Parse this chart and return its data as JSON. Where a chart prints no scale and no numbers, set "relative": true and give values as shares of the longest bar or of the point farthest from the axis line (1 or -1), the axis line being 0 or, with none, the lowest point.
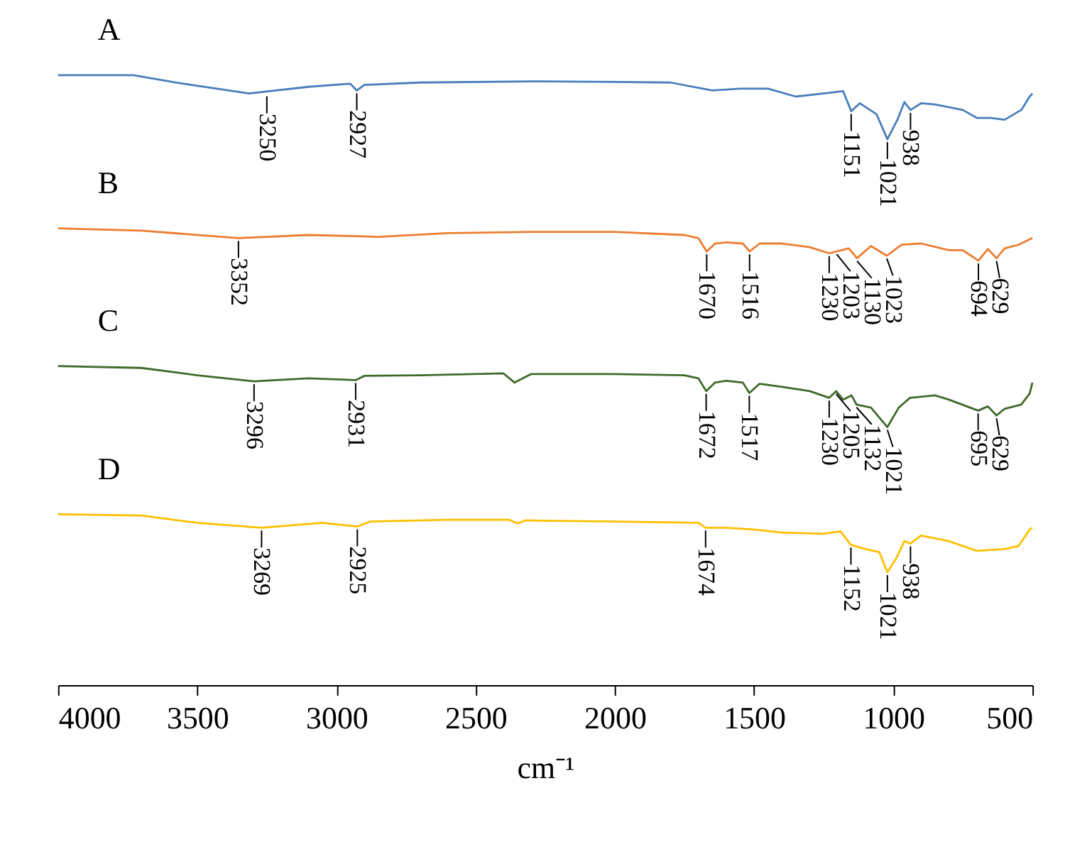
{
  "chart_data": {
    "type": "line",
    "relative": true,
    "xlabel": "cm⁻¹",
    "xlim": [
      4000,
      500
    ],
    "xticks": [
      4000,
      3500,
      3000,
      2500,
      2000,
      1500,
      1000,
      500
    ],
    "grid": false,
    "series": [
      {
        "name": "A",
        "color": "#4a7ebb",
        "x": [
          4000,
          3730,
          3550,
          3314,
          3100,
          2950,
          2927,
          2900,
          2700,
          2300,
          2000,
          1800,
          1650,
          1550,
          1450,
          1350,
          1250,
          1180,
          1151,
          1120,
          1060,
          1021,
          985,
          960,
          938,
          900,
          850,
          750,
          700,
          650,
          600,
          540,
          510,
          500
        ],
        "values": [
          1.0,
          1.0,
          0.986,
          0.97,
          0.981,
          0.986,
          0.975,
          0.984,
          0.988,
          0.99,
          0.989,
          0.988,
          0.975,
          0.978,
          0.978,
          0.965,
          0.97,
          0.974,
          0.941,
          0.954,
          0.936,
          0.895,
          0.927,
          0.956,
          0.943,
          0.954,
          0.952,
          0.943,
          0.93,
          0.93,
          0.927,
          0.943,
          0.965,
          0.97
        ]
      },
      {
        "name": "B",
        "color": "#ed7d31",
        "x": [
          4000,
          3700,
          3352,
          3100,
          2850,
          2600,
          2300,
          2000,
          1750,
          1700,
          1670,
          1640,
          1600,
          1540,
          1516,
          1480,
          1400,
          1300,
          1230,
          1203,
          1160,
          1130,
          1080,
          1023,
          970,
          900,
          800,
          750,
          694,
          660,
          629,
          600,
          550,
          500
        ],
        "values": [
          0.749,
          0.745,
          0.733,
          0.738,
          0.735,
          0.741,
          0.743,
          0.743,
          0.738,
          0.733,
          0.711,
          0.724,
          0.726,
          0.724,
          0.711,
          0.724,
          0.724,
          0.718,
          0.708,
          0.711,
          0.716,
          0.7,
          0.72,
          0.704,
          0.722,
          0.724,
          0.713,
          0.713,
          0.696,
          0.715,
          0.7,
          0.716,
          0.722,
          0.733
        ]
      },
      {
        "name": "C",
        "color": "#3f6a2a",
        "x": [
          4000,
          3700,
          3500,
          3296,
          3100,
          2931,
          2900,
          2700,
          2400,
          2360,
          2330,
          2300,
          2000,
          1750,
          1700,
          1672,
          1640,
          1600,
          1540,
          1517,
          1480,
          1400,
          1300,
          1230,
          1205,
          1180,
          1150,
          1132,
          1080,
          1021,
          980,
          940,
          850,
          800,
          695,
          660,
          629,
          600,
          540,
          510,
          500
        ],
        "values": [
          0.523,
          0.52,
          0.508,
          0.498,
          0.503,
          0.5,
          0.507,
          0.508,
          0.511,
          0.496,
          0.503,
          0.51,
          0.51,
          0.508,
          0.503,
          0.482,
          0.496,
          0.499,
          0.496,
          0.479,
          0.494,
          0.489,
          0.482,
          0.471,
          0.482,
          0.468,
          0.475,
          0.46,
          0.455,
          0.423,
          0.455,
          0.471,
          0.475,
          0.468,
          0.45,
          0.457,
          0.442,
          0.453,
          0.46,
          0.478,
          0.496
        ]
      },
      {
        "name": "D",
        "color": "#ffc000",
        "x": [
          4000,
          3700,
          3500,
          3269,
          3050,
          2925,
          2880,
          2600,
          2380,
          2350,
          2320,
          2000,
          1700,
          1674,
          1600,
          1500,
          1400,
          1250,
          1190,
          1152,
          1100,
          1050,
          1021,
          990,
          960,
          938,
          900,
          800,
          700,
          600,
          550,
          510,
          500
        ],
        "values": [
          0.28,
          0.278,
          0.266,
          0.258,
          0.266,
          0.26,
          0.268,
          0.271,
          0.271,
          0.265,
          0.27,
          0.268,
          0.266,
          0.258,
          0.258,
          0.255,
          0.25,
          0.248,
          0.252,
          0.23,
          0.223,
          0.218,
          0.185,
          0.207,
          0.236,
          0.232,
          0.245,
          0.236,
          0.22,
          0.223,
          0.228,
          0.255,
          0.258
        ]
      }
    ],
    "annotations": [
      {
        "text": "3250",
        "x": 3250,
        "y": 0.97
      },
      {
        "text": "2927",
        "x": 2927,
        "y": 0.975
      },
      {
        "text": "1151",
        "x": 1151,
        "y": 0.941
      },
      {
        "text": "1021",
        "x": 1021,
        "y": 0.895
      },
      {
        "text": "938",
        "x": 938,
        "y": 0.943
      },
      {
        "text": "3352",
        "x": 3352,
        "y": 0.733
      },
      {
        "text": "1670",
        "x": 1670,
        "y": 0.711
      },
      {
        "text": "1516",
        "x": 1516,
        "y": 0.711
      },
      {
        "text": "1230",
        "x": 1230,
        "y": 0.708
      },
      {
        "text": "1203",
        "x": 1203,
        "y": 0.711
      },
      {
        "text": "1130",
        "x": 1130,
        "y": 0.7
      },
      {
        "text": "1023",
        "x": 1023,
        "y": 0.704
      },
      {
        "text": "694",
        "x": 694,
        "y": 0.696
      },
      {
        "text": "629",
        "x": 629,
        "y": 0.7
      },
      {
        "text": "3296",
        "x": 3296,
        "y": 0.498
      },
      {
        "text": "2931",
        "x": 2931,
        "y": 0.5
      },
      {
        "text": "1672",
        "x": 1672,
        "y": 0.482
      },
      {
        "text": "1517",
        "x": 1517,
        "y": 0.479
      },
      {
        "text": "1230",
        "x": 1230,
        "y": 0.471
      },
      {
        "text": "1205",
        "x": 1205,
        "y": 0.482
      },
      {
        "text": "1132",
        "x": 1132,
        "y": 0.46
      },
      {
        "text": "1021",
        "x": 1021,
        "y": 0.423
      },
      {
        "text": "695",
        "x": 695,
        "y": 0.45
      },
      {
        "text": "629",
        "x": 629,
        "y": 0.442
      },
      {
        "text": "3269",
        "x": 3269,
        "y": 0.258
      },
      {
        "text": "2925",
        "x": 2925,
        "y": 0.26
      },
      {
        "text": "1674",
        "x": 1674,
        "y": 0.258
      },
      {
        "text": "1152",
        "x": 1152,
        "y": 0.23
      },
      {
        "text": "1021",
        "x": 1021,
        "y": 0.185
      },
      {
        "text": "938",
        "x": 938,
        "y": 0.232
      }
    ]
  }
}
